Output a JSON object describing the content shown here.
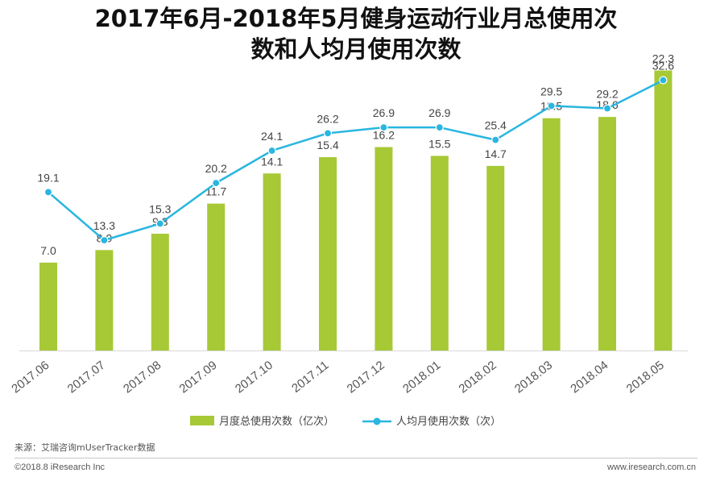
{
  "chart_data": {
    "type": "bar+line",
    "title_line1": "2017年6月-2018年5月健身运动行业月总使用次",
    "title_line2": "数和人均月使用次数",
    "categories": [
      "2017.06",
      "2017.07",
      "2017.08",
      "2017.09",
      "2017.10",
      "2017.11",
      "2017.12",
      "2018.01",
      "2018.02",
      "2018.03",
      "2018.04",
      "2018.05"
    ],
    "series": [
      {
        "name": "月度总使用次数（亿次）",
        "type": "bar",
        "color": "#a6c935",
        "values": [
          7.0,
          8.0,
          9.3,
          11.7,
          14.1,
          15.4,
          16.2,
          15.5,
          14.7,
          18.5,
          18.6,
          22.3
        ],
        "labels": [
          "7.0",
          "8.0",
          "9.3",
          "11.7",
          "14.1",
          "15.4",
          "16.2",
          "15.5",
          "14.7",
          "18.5",
          "18.6",
          "22.3"
        ]
      },
      {
        "name": "人均月使用次数（次）",
        "type": "line",
        "color": "#29b6e0",
        "values": [
          19.1,
          13.3,
          15.3,
          20.2,
          24.1,
          26.2,
          26.9,
          26.9,
          25.4,
          29.5,
          29.2,
          32.6
        ],
        "labels": [
          "19.1",
          "13.3",
          "15.3",
          "20.2",
          "24.1",
          "26.2",
          "26.9",
          "26.9",
          "25.4",
          "29.5",
          "29.2",
          "32.6"
        ]
      }
    ],
    "bar_axis_range": [
      0,
      24
    ],
    "line_axis_range": [
      0,
      55
    ],
    "legend_position": "bottom",
    "grid": false
  },
  "source": "来源：艾瑞咨询mUserTracker数据",
  "copyright": "©2018.8 iResearch Inc",
  "website": "www.iresearch.com.cn"
}
